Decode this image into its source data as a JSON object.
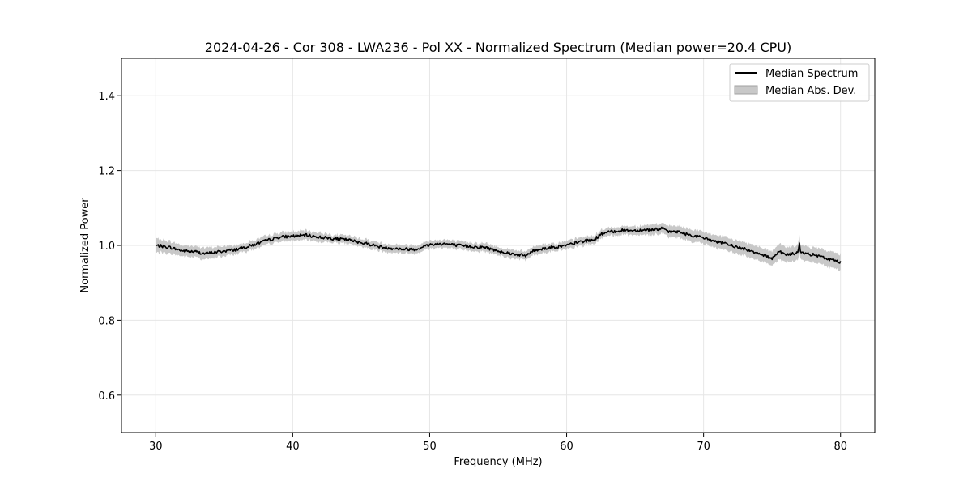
{
  "chart_data": {
    "type": "line",
    "title": "2024-04-26 - Cor 308 - LWA236 - Pol XX - Normalized Spectrum (Median power=20.4 CPU)",
    "xlabel": "Frequency (MHz)",
    "ylabel": "Normalized Power",
    "xlim": [
      27.5,
      82.5
    ],
    "ylim": [
      0.5,
      1.5
    ],
    "xticks": [
      30,
      40,
      50,
      60,
      70,
      80
    ],
    "yticks": [
      0.6,
      0.8,
      1.0,
      1.2,
      1.4
    ],
    "xtick_labels": [
      "30",
      "40",
      "50",
      "60",
      "70",
      "80"
    ],
    "ytick_labels": [
      "0.6",
      "0.8",
      "1.0",
      "1.2",
      "1.4"
    ],
    "grid": true,
    "legend_position": "top-right",
    "series": [
      {
        "name": "Median Spectrum",
        "kind": "line",
        "color": "#000000",
        "x": [
          30,
          31,
          32,
          33,
          33.5,
          34,
          35,
          36,
          37,
          38,
          39,
          40,
          41,
          42,
          43,
          44,
          45,
          46,
          46.5,
          47,
          48,
          49,
          50,
          51,
          52,
          53,
          54,
          55,
          56,
          57,
          57.5,
          58,
          59,
          60,
          61,
          62,
          62.5,
          63,
          64,
          65,
          66,
          67,
          67.5,
          68,
          69,
          70,
          71,
          72,
          73,
          74,
          75,
          75.5,
          76,
          76.9,
          77,
          77.1,
          78,
          79,
          80
        ],
        "y": [
          1.0,
          0.995,
          0.985,
          0.983,
          0.978,
          0.98,
          0.985,
          0.99,
          1.0,
          1.012,
          1.022,
          1.025,
          1.027,
          1.022,
          1.018,
          1.015,
          1.008,
          1.0,
          0.995,
          0.993,
          0.99,
          0.99,
          1.002,
          1.005,
          1.0,
          0.997,
          0.995,
          0.985,
          0.978,
          0.972,
          0.985,
          0.99,
          0.995,
          1.0,
          1.01,
          1.015,
          1.03,
          1.035,
          1.04,
          1.04,
          1.042,
          1.045,
          1.035,
          1.038,
          1.028,
          1.02,
          1.01,
          1.0,
          0.99,
          0.98,
          0.965,
          0.985,
          0.975,
          0.98,
          1.005,
          0.98,
          0.975,
          0.965,
          0.955
        ]
      },
      {
        "name": "Median Abs. Dev.",
        "kind": "band",
        "color": "#c8c8c8",
        "band_half_width": [
          0.018,
          0.016,
          0.015,
          0.015,
          0.015,
          0.015,
          0.013,
          0.012,
          0.012,
          0.012,
          0.012,
          0.012,
          0.012,
          0.012,
          0.011,
          0.011,
          0.011,
          0.011,
          0.011,
          0.011,
          0.011,
          0.011,
          0.011,
          0.011,
          0.011,
          0.011,
          0.011,
          0.011,
          0.011,
          0.011,
          0.011,
          0.011,
          0.011,
          0.011,
          0.011,
          0.011,
          0.011,
          0.011,
          0.011,
          0.012,
          0.013,
          0.014,
          0.015,
          0.015,
          0.016,
          0.016,
          0.017,
          0.017,
          0.018,
          0.018,
          0.019,
          0.02,
          0.02,
          0.02,
          0.022,
          0.02,
          0.02,
          0.021,
          0.022
        ]
      }
    ]
  }
}
